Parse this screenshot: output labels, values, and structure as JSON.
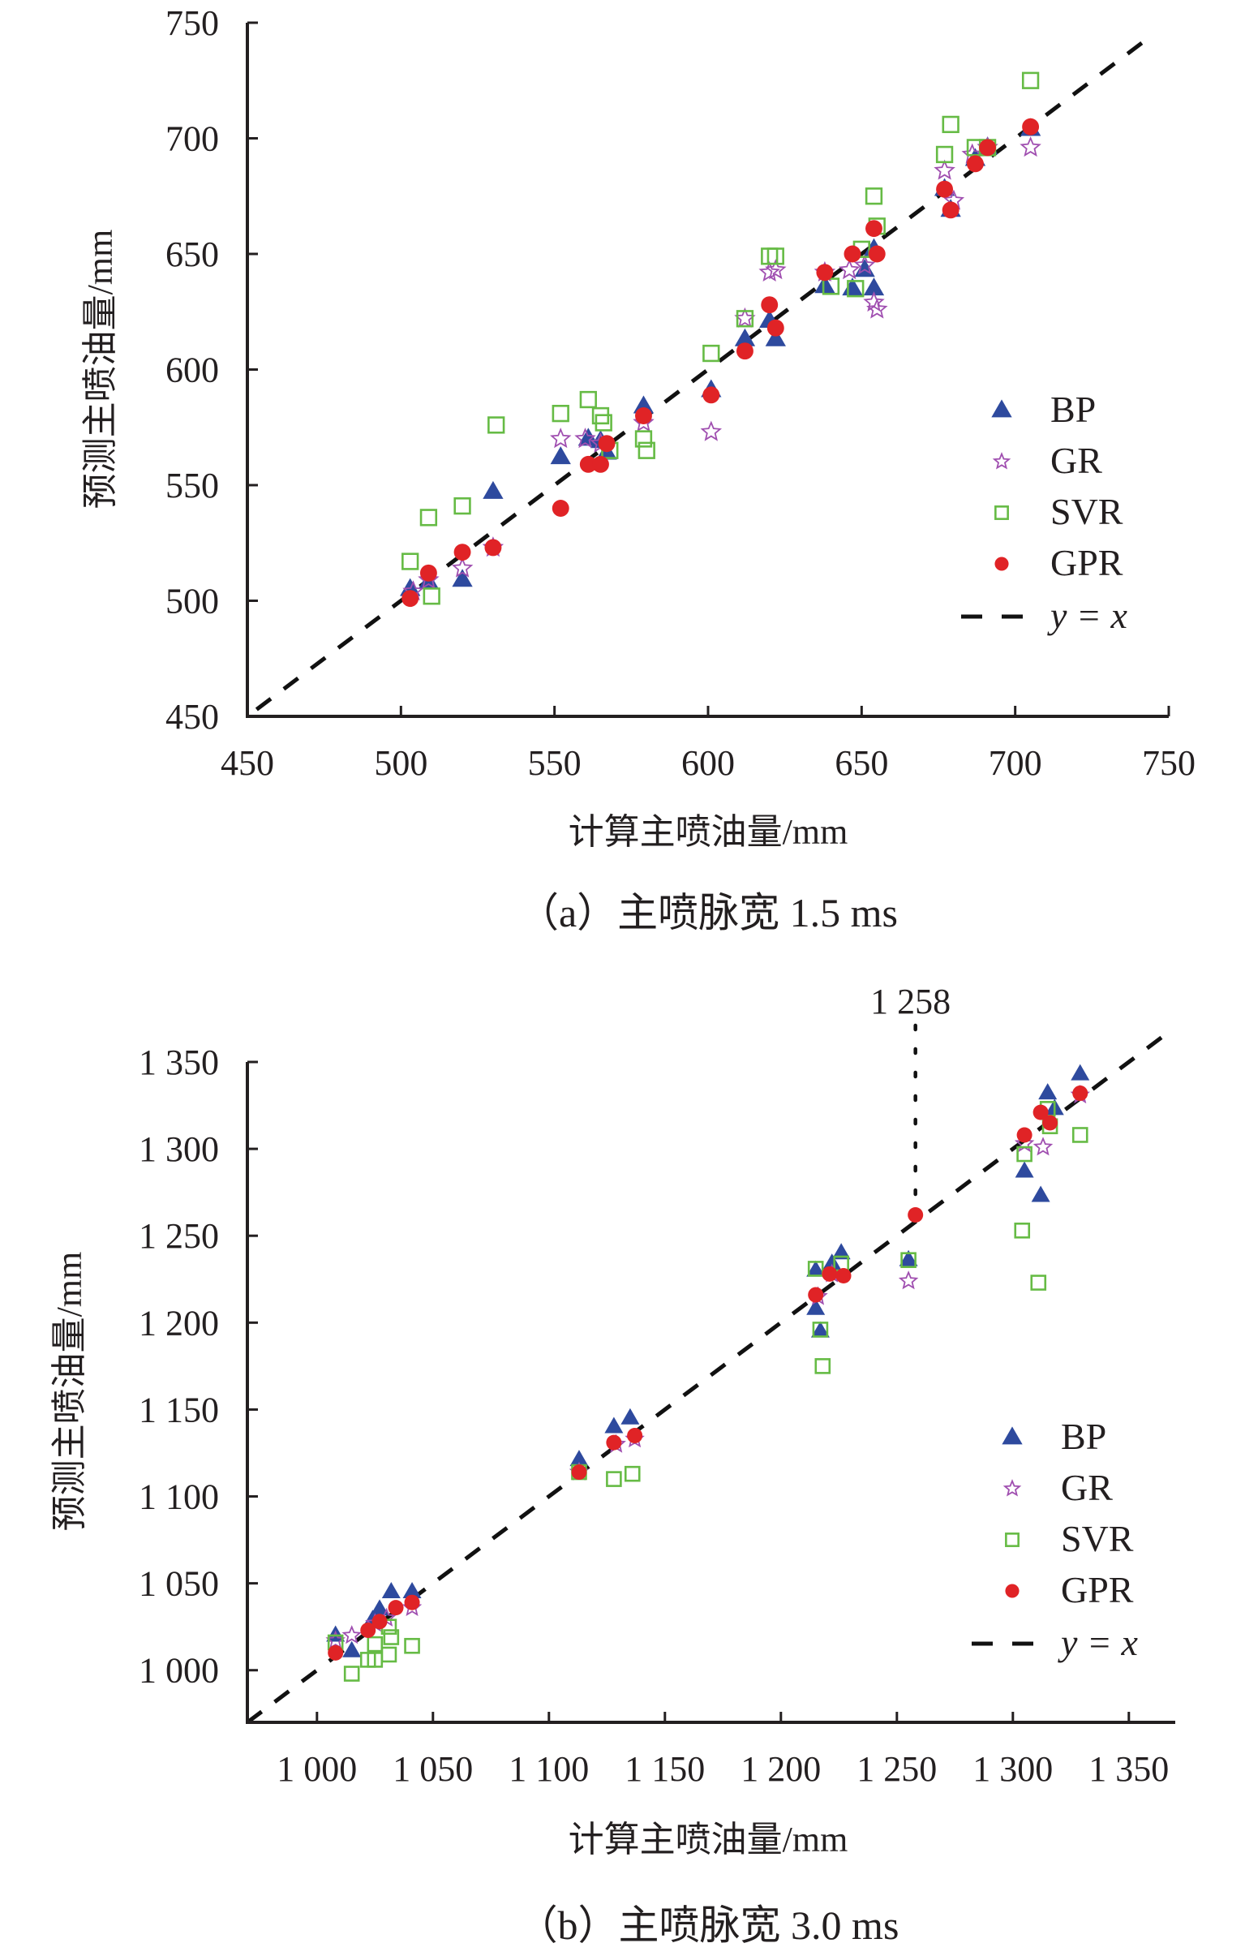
{
  "chart_data": [
    {
      "type": "scatter",
      "panel": "a",
      "title": "",
      "caption": "（a）主喷脉宽 1.5 ms",
      "xlabel": "计算主喷油量/mm",
      "ylabel": "预测主喷油量/mm",
      "xlim": [
        450,
        750
      ],
      "ylim": [
        450,
        750
      ],
      "xticks": [
        450,
        500,
        550,
        600,
        650,
        700,
        750
      ],
      "yticks": [
        450,
        500,
        550,
        600,
        650,
        700,
        750
      ],
      "xtick_labels": [
        "450",
        "500",
        "550",
        "600",
        "650",
        "700",
        "750"
      ],
      "ytick_labels": [
        "450",
        "500",
        "550",
        "600",
        "650",
        "700",
        "750"
      ],
      "grid": false,
      "legend_position": "right-middle",
      "legend": [
        "BP",
        "GR",
        "SVR",
        "GPR",
        "y = x"
      ],
      "reference_line": {
        "label": "y = x",
        "style": "dashed",
        "from": 453,
        "to": 745
      },
      "series": [
        {
          "name": "BP",
          "marker": "triangle",
          "color": "#2e4a9e",
          "points": [
            [
              503,
              505
            ],
            [
              509,
              508
            ],
            [
              520,
              509
            ],
            [
              530,
              547
            ],
            [
              552,
              562
            ],
            [
              561,
              570
            ],
            [
              565,
              569
            ],
            [
              567,
              564
            ],
            [
              579,
              584
            ],
            [
              601,
              591
            ],
            [
              612,
              613
            ],
            [
              620,
              621
            ],
            [
              622,
              613
            ],
            [
              638,
              636
            ],
            [
              647,
              635
            ],
            [
              651,
              643
            ],
            [
              654,
              652
            ],
            [
              654,
              635
            ],
            [
              677,
              678
            ],
            [
              679,
              669
            ],
            [
              687,
              691
            ],
            [
              691,
              696
            ],
            [
              705,
              704
            ]
          ]
        },
        {
          "name": "GR",
          "marker": "star",
          "color": "#a04fb0",
          "points": [
            [
              504,
              504
            ],
            [
              509,
              509
            ],
            [
              520,
              514
            ],
            [
              530,
              523
            ],
            [
              552,
              570
            ],
            [
              560,
              570
            ],
            [
              565,
              568
            ],
            [
              579,
              577
            ],
            [
              601,
              573
            ],
            [
              612,
              622
            ],
            [
              620,
              642
            ],
            [
              622,
              643
            ],
            [
              638,
              642
            ],
            [
              646,
              643
            ],
            [
              651,
              645
            ],
            [
              654,
              629
            ],
            [
              655,
              626
            ],
            [
              677,
              686
            ],
            [
              680,
              673
            ],
            [
              686,
              693
            ],
            [
              691,
              696
            ],
            [
              705,
              696
            ]
          ]
        },
        {
          "name": "SVR",
          "marker": "square",
          "color": "#66bb45",
          "points": [
            [
              503,
              517
            ],
            [
              509,
              536
            ],
            [
              510,
              502
            ],
            [
              520,
              541
            ],
            [
              531,
              576
            ],
            [
              552,
              581
            ],
            [
              561,
              587
            ],
            [
              565,
              580
            ],
            [
              566,
              577
            ],
            [
              568,
              565
            ],
            [
              579,
              570
            ],
            [
              580,
              565
            ],
            [
              601,
              607
            ],
            [
              612,
              622
            ],
            [
              620,
              649
            ],
            [
              622,
              649
            ],
            [
              640,
              636
            ],
            [
              648,
              635
            ],
            [
              650,
              652
            ],
            [
              654,
              675
            ],
            [
              655,
              662
            ],
            [
              677,
              693
            ],
            [
              679,
              706
            ],
            [
              687,
              696
            ],
            [
              691,
              696
            ],
            [
              705,
              725
            ]
          ]
        },
        {
          "name": "GPR",
          "marker": "circle",
          "color": "#e02326",
          "points": [
            [
              503,
              501
            ],
            [
              509,
              512
            ],
            [
              520,
              521
            ],
            [
              530,
              523
            ],
            [
              552,
              540
            ],
            [
              561,
              559
            ],
            [
              565,
              559
            ],
            [
              567,
              568
            ],
            [
              579,
              580
            ],
            [
              601,
              589
            ],
            [
              612,
              608
            ],
            [
              620,
              628
            ],
            [
              622,
              618
            ],
            [
              638,
              642
            ],
            [
              647,
              650
            ],
            [
              654,
              661
            ],
            [
              655,
              650
            ],
            [
              677,
              678
            ],
            [
              679,
              669
            ],
            [
              687,
              689
            ],
            [
              691,
              696
            ],
            [
              705,
              705
            ]
          ]
        }
      ]
    },
    {
      "type": "scatter",
      "panel": "b",
      "title": "",
      "caption": "（b）主喷脉宽 3.0 ms",
      "xlabel": "计算主喷油量/mm",
      "ylabel": "预测主喷油量/mm",
      "xlim": [
        970,
        1370
      ],
      "ylim": [
        970,
        1350
      ],
      "xticks": [
        1000,
        1050,
        1100,
        1150,
        1200,
        1250,
        1300,
        1350
      ],
      "yticks": [
        1000,
        1050,
        1100,
        1150,
        1200,
        1250,
        1300,
        1350
      ],
      "xtick_labels": [
        "1 000",
        "1 050",
        "1 100",
        "1 150",
        "1 200",
        "1 250",
        "1 300",
        "1 350"
      ],
      "ytick_labels": [
        "1 000",
        "1 050",
        "1 100",
        "1 150",
        "1 200",
        "1 250",
        "1 300",
        "1 350"
      ],
      "grid": false,
      "legend_position": "right-middle",
      "legend": [
        "BP",
        "GR",
        "SVR",
        "GPR",
        "y = x"
      ],
      "reference_line": {
        "label": "y = x",
        "style": "dashed",
        "from": 970,
        "to": 1367
      },
      "annotation": {
        "text": "1 258",
        "x": 1258,
        "y": 1262,
        "style": "dotted-vertical"
      },
      "series": [
        {
          "name": "BP",
          "marker": "triangle",
          "color": "#2e4a9e",
          "points": [
            [
              1008,
              1020
            ],
            [
              1015,
              1011
            ],
            [
              1024,
              1029
            ],
            [
              1027,
              1035
            ],
            [
              1032,
              1045
            ],
            [
              1041,
              1045
            ],
            [
              1113,
              1121
            ],
            [
              1128,
              1140
            ],
            [
              1135,
              1145
            ],
            [
              1215,
              1230
            ],
            [
              1215,
              1208
            ],
            [
              1217,
              1195
            ],
            [
              1222,
              1234
            ],
            [
              1226,
              1240
            ],
            [
              1255,
              1236
            ],
            [
              1305,
              1287
            ],
            [
              1312,
              1273
            ],
            [
              1315,
              1332
            ],
            [
              1318,
              1323
            ],
            [
              1329,
              1343
            ]
          ]
        },
        {
          "name": "GR",
          "marker": "star",
          "color": "#a04fb0",
          "points": [
            [
              1008,
              1017
            ],
            [
              1015,
              1020
            ],
            [
              1025,
              1027
            ],
            [
              1030,
              1030
            ],
            [
              1041,
              1036
            ],
            [
              1113,
              1114
            ],
            [
              1129,
              1130
            ],
            [
              1137,
              1133
            ],
            [
              1216,
              1215
            ],
            [
              1222,
              1228
            ],
            [
              1255,
              1224
            ],
            [
              1305,
              1303
            ],
            [
              1313,
              1301
            ],
            [
              1329,
              1331
            ]
          ]
        },
        {
          "name": "SVR",
          "marker": "square",
          "color": "#66bb45",
          "points": [
            [
              1008,
              1016
            ],
            [
              1015,
              998
            ],
            [
              1022,
              1006
            ],
            [
              1025,
              1006
            ],
            [
              1025,
              1015
            ],
            [
              1031,
              1025
            ],
            [
              1032,
              1019
            ],
            [
              1031,
              1009
            ],
            [
              1041,
              1014
            ],
            [
              1113,
              1114
            ],
            [
              1128,
              1110
            ],
            [
              1136,
              1113
            ],
            [
              1215,
              1231
            ],
            [
              1217,
              1196
            ],
            [
              1218,
              1175
            ],
            [
              1226,
              1234
            ],
            [
              1255,
              1236
            ],
            [
              1304,
              1253
            ],
            [
              1305,
              1297
            ],
            [
              1311,
              1223
            ],
            [
              1315,
              1323
            ],
            [
              1316,
              1313
            ],
            [
              1329,
              1308
            ]
          ]
        },
        {
          "name": "GPR",
          "marker": "circle",
          "color": "#e02326",
          "points": [
            [
              1008,
              1010
            ],
            [
              1022,
              1023
            ],
            [
              1027,
              1028
            ],
            [
              1034,
              1036
            ],
            [
              1041,
              1039
            ],
            [
              1113,
              1114
            ],
            [
              1128,
              1131
            ],
            [
              1137,
              1135
            ],
            [
              1215,
              1216
            ],
            [
              1221,
              1228
            ],
            [
              1227,
              1227
            ],
            [
              1258,
              1262
            ],
            [
              1305,
              1308
            ],
            [
              1312,
              1321
            ],
            [
              1316,
              1315
            ],
            [
              1329,
              1332
            ]
          ]
        }
      ]
    }
  ]
}
